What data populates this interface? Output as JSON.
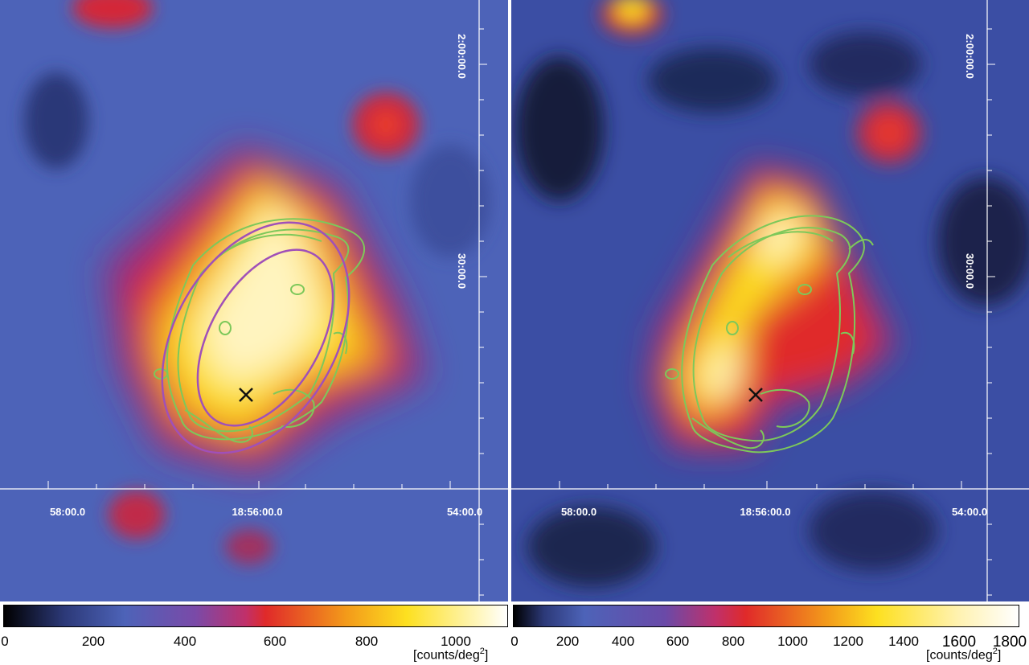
{
  "left_panel": {
    "ra_labels": [
      "58:00.0",
      "18:56:00.0",
      "54:00.0"
    ],
    "dec_labels": [
      "2:00:00.0",
      "30:00.0"
    ],
    "colorbar": {
      "ticks": [
        "0",
        "200",
        "400",
        "600",
        "800",
        "1000"
      ],
      "unit_prefix": "[counts/deg",
      "unit_sup": "2",
      "unit_suffix": "]"
    }
  },
  "right_panel": {
    "ra_labels": [
      "58:00.0",
      "18:56:00.0",
      "54:00.0"
    ],
    "dec_labels": [
      "2:00:00.0",
      "30:00.0"
    ],
    "colorbar": {
      "ticks": [
        "0",
        "200",
        "400",
        "600",
        "800",
        "1000",
        "1200",
        "1400",
        "1600",
        "1800"
      ],
      "unit_prefix": "[counts/deg",
      "unit_sup": "2",
      "unit_suffix": "]"
    }
  },
  "colors": {
    "background_blue": "#4a5fb8",
    "contour_green": "#7dc85a",
    "ellipse_magenta": "#a050b8",
    "grid_white": "#ffffff",
    "marker_black": "#111111"
  },
  "icons": {
    "source_marker": "x-cross-icon"
  }
}
